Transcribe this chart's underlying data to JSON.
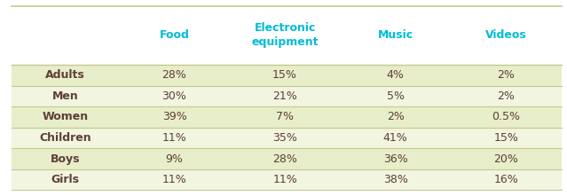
{
  "columns": [
    "Food",
    "Electronic\nequipment",
    "Music",
    "Videos"
  ],
  "rows": [
    "Adults",
    "Men",
    "Women",
    "Children",
    "Boys",
    "Girls"
  ],
  "values": [
    [
      "28%",
      "15%",
      "4%",
      "2%"
    ],
    [
      "30%",
      "21%",
      "5%",
      "2%"
    ],
    [
      "39%",
      "7%",
      "2%",
      "0.5%"
    ],
    [
      "11%",
      "35%",
      "41%",
      "15%"
    ],
    [
      "9%",
      "28%",
      "36%",
      "20%"
    ],
    [
      "11%",
      "11%",
      "38%",
      "16%"
    ]
  ],
  "header_color": "#00BCD4",
  "row_label_color": "#5D4037",
  "cell_text_color": "#5D4037",
  "bg_color_odd": "#E8EDCA",
  "bg_color_even": "#F2F5E0",
  "border_color": "#C5CA8E",
  "fig_bg": "#FFFFFF",
  "header_fontsize": 9,
  "cell_fontsize": 9
}
